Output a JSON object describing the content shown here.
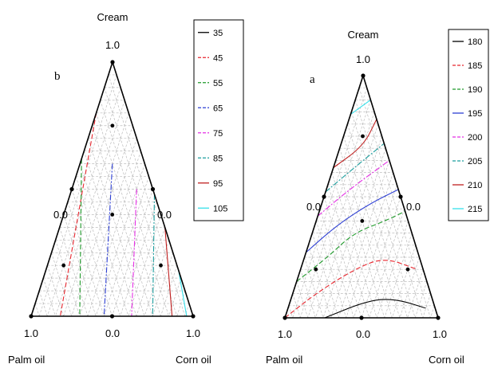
{
  "chart_data": [
    {
      "type": "ternary-contour",
      "panel_label": "b",
      "components": {
        "top": "Cream",
        "left": "Palm oil",
        "right": "Corn oil"
      },
      "tick_labels": {
        "top": "1.0",
        "left": "1.0",
        "right": "1.0",
        "bottom_mid": "0.0",
        "left_mid": "0.0",
        "right_mid": "0.0"
      },
      "grid": true,
      "legend_position": "right",
      "design_points": [
        {
          "cream": 0.75,
          "palm": 0.125,
          "corn": 0.125
        },
        {
          "cream": 0.4,
          "palm": 0.3,
          "corn": 0.3
        },
        {
          "cream": 0.2,
          "palm": 0.7,
          "corn": 0.1
        },
        {
          "cream": 0.2,
          "palm": 0.1,
          "corn": 0.7
        }
      ],
      "contour_levels": [
        {
          "label": "35",
          "color": "#000000",
          "dash": "solid"
        },
        {
          "label": "45",
          "color": "#e8262e",
          "dash": "dash"
        },
        {
          "label": "55",
          "color": "#1f9a2a",
          "dash": "dash"
        },
        {
          "label": "65",
          "color": "#2d3fd4",
          "dash": "dashdot"
        },
        {
          "label": "75",
          "color": "#e52fe5",
          "dash": "dashdot"
        },
        {
          "label": "85",
          "color": "#1b9e9e",
          "dash": "dashdot"
        },
        {
          "label": "95",
          "color": "#c01f1f",
          "dash": "solid"
        },
        {
          "label": "105",
          "color": "#35e0ea",
          "dash": "solid"
        }
      ],
      "contour_lines": [
        {
          "level": "45",
          "from": {
            "cream": 0.8,
            "palm": 0.2,
            "corn": 0.0
          },
          "to": {
            "cream": 0.0,
            "palm": 0.82,
            "corn": 0.18
          }
        },
        {
          "level": "55",
          "from": {
            "cream": 0.62,
            "palm": 0.38,
            "corn": 0.0
          },
          "to": {
            "cream": 0.0,
            "palm": 0.7,
            "corn": 0.3
          }
        },
        {
          "level": "65",
          "from": {
            "cream": 0.6,
            "palm": 0.2,
            "corn": 0.2
          },
          "to": {
            "cream": 0.0,
            "palm": 0.55,
            "corn": 0.45
          }
        },
        {
          "level": "75",
          "from": {
            "cream": 0.5,
            "palm": 0.1,
            "corn": 0.4
          },
          "to": {
            "cream": 0.0,
            "palm": 0.38,
            "corn": 0.62
          }
        },
        {
          "level": "85",
          "from": {
            "cream": 0.48,
            "palm": 0.0,
            "corn": 0.52
          },
          "to": {
            "cream": 0.0,
            "palm": 0.25,
            "corn": 0.75
          }
        },
        {
          "level": "95",
          "from": {
            "cream": 0.35,
            "palm": 0.0,
            "corn": 0.65
          },
          "to": {
            "cream": 0.0,
            "palm": 0.13,
            "corn": 0.87
          }
        },
        {
          "level": "105",
          "from": {
            "cream": 0.18,
            "palm": 0.0,
            "corn": 0.82
          },
          "to": {
            "cream": 0.0,
            "palm": 0.04,
            "corn": 0.96
          }
        }
      ]
    },
    {
      "type": "ternary-contour",
      "panel_label": "a",
      "components": {
        "top": "Cream",
        "left": "Palm oil",
        "right": "Corn oil"
      },
      "tick_labels": {
        "top": "1.0",
        "left": "1.0",
        "right": "1.0",
        "bottom_mid": "0.0",
        "left_mid": "0.0",
        "right_mid": "0.0"
      },
      "grid": true,
      "legend_position": "right",
      "design_points": [
        {
          "cream": 0.75,
          "palm": 0.125,
          "corn": 0.125
        },
        {
          "cream": 0.4,
          "palm": 0.3,
          "corn": 0.3
        },
        {
          "cream": 0.2,
          "palm": 0.7,
          "corn": 0.1
        },
        {
          "cream": 0.2,
          "palm": 0.1,
          "corn": 0.7
        }
      ],
      "contour_levels": [
        {
          "label": "180",
          "color": "#000000",
          "dash": "solid"
        },
        {
          "label": "185",
          "color": "#e8262e",
          "dash": "dash"
        },
        {
          "label": "190",
          "color": "#1f9a2a",
          "dash": "dash"
        },
        {
          "label": "195",
          "color": "#2d3fd4",
          "dash": "solid"
        },
        {
          "label": "200",
          "color": "#e52fe5",
          "dash": "dashdot"
        },
        {
          "label": "205",
          "color": "#1b9e9e",
          "dash": "dashdot"
        },
        {
          "label": "210",
          "color": "#c01f1f",
          "dash": "solid"
        },
        {
          "label": "215",
          "color": "#35e0ea",
          "dash": "solid"
        }
      ],
      "contour_lines": [
        {
          "level": "180",
          "points": [
            {
              "cream": 0.0,
              "palm": 0.74,
              "corn": 0.26
            },
            {
              "cream": 0.07,
              "palm": 0.43,
              "corn": 0.5
            },
            {
              "cream": 0.08,
              "palm": 0.25,
              "corn": 0.67
            },
            {
              "cream": 0.04,
              "palm": 0.06,
              "corn": 0.9
            }
          ]
        },
        {
          "level": "185",
          "points": [
            {
              "cream": 0.0,
              "palm": 1.0,
              "corn": 0.0
            },
            {
              "cream": 0.1,
              "palm": 0.75,
              "corn": 0.15
            },
            {
              "cream": 0.2,
              "palm": 0.45,
              "corn": 0.35
            },
            {
              "cream": 0.25,
              "palm": 0.23,
              "corn": 0.52
            },
            {
              "cream": 0.2,
              "palm": 0.04,
              "corn": 0.76
            }
          ]
        },
        {
          "level": "190",
          "points": [
            {
              "cream": 0.15,
              "palm": 0.85,
              "corn": 0.0
            },
            {
              "cream": 0.25,
              "palm": 0.6,
              "corn": 0.15
            },
            {
              "cream": 0.35,
              "palm": 0.38,
              "corn": 0.27
            },
            {
              "cream": 0.4,
              "palm": 0.15,
              "corn": 0.45
            },
            {
              "cream": 0.44,
              "palm": 0.0,
              "corn": 0.56
            }
          ]
        },
        {
          "level": "195",
          "points": [
            {
              "cream": 0.27,
              "palm": 0.73,
              "corn": 0.0
            },
            {
              "cream": 0.38,
              "palm": 0.48,
              "corn": 0.14
            },
            {
              "cream": 0.47,
              "palm": 0.22,
              "corn": 0.31
            },
            {
              "cream": 0.53,
              "palm": 0.0,
              "corn": 0.47
            }
          ]
        },
        {
          "level": "200",
          "points": [
            {
              "cream": 0.42,
              "palm": 0.58,
              "corn": 0.0
            },
            {
              "cream": 0.53,
              "palm": 0.32,
              "corn": 0.15
            },
            {
              "cream": 0.65,
              "palm": 0.0,
              "corn": 0.35
            }
          ]
        },
        {
          "level": "205",
          "points": [
            {
              "cream": 0.52,
              "palm": 0.48,
              "corn": 0.0
            },
            {
              "cream": 0.63,
              "palm": 0.22,
              "corn": 0.15
            },
            {
              "cream": 0.72,
              "palm": 0.0,
              "corn": 0.28
            }
          ]
        },
        {
          "level": "210",
          "points": [
            {
              "cream": 0.62,
              "palm": 0.38,
              "corn": 0.0
            },
            {
              "cream": 0.71,
              "palm": 0.14,
              "corn": 0.15
            },
            {
              "cream": 0.82,
              "palm": 0.0,
              "corn": 0.18
            }
          ]
        },
        {
          "level": "215",
          "points": [
            {
              "cream": 0.84,
              "palm": 0.16,
              "corn": 0.0
            },
            {
              "cream": 0.9,
              "palm": 0.0,
              "corn": 0.1
            }
          ]
        }
      ]
    }
  ]
}
